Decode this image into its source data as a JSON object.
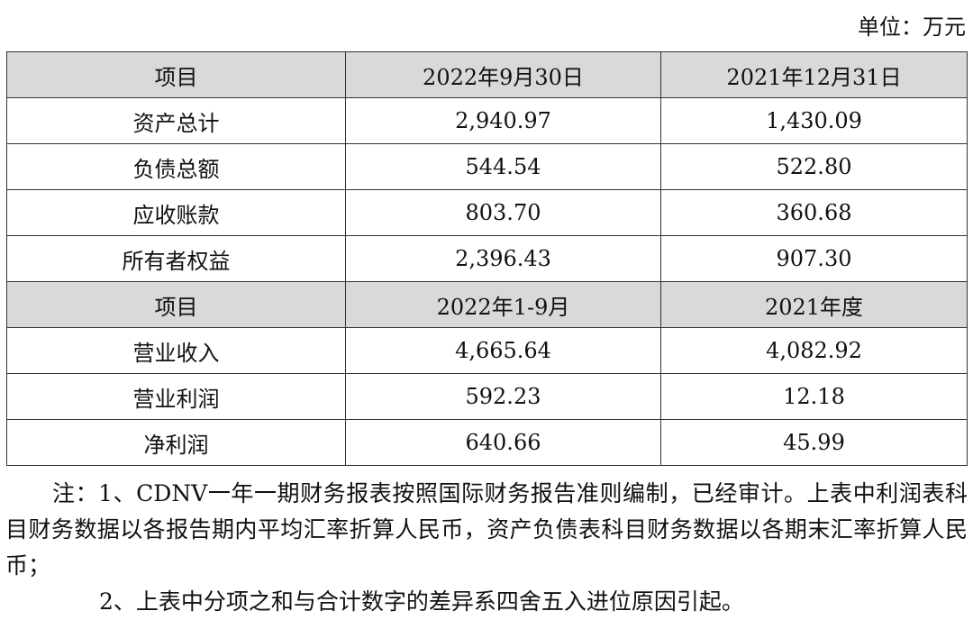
{
  "unit": "单位：万元",
  "table": {
    "sections": [
      {
        "header": [
          "项目",
          "2022年9月30日",
          "2021年12月31日"
        ],
        "rows": [
          [
            "资产总计",
            "2,940.97",
            "1,430.09"
          ],
          [
            "负债总额",
            "544.54",
            "522.80"
          ],
          [
            "应收账款",
            "803.70",
            "360.68"
          ],
          [
            "所有者权益",
            "2,396.43",
            "907.30"
          ]
        ]
      },
      {
        "header": [
          "项目",
          "2022年1-9月",
          "2021年度"
        ],
        "rows": [
          [
            "营业收入",
            "4,665.64",
            "4,082.92"
          ],
          [
            "营业利润",
            "592.23",
            "12.18"
          ],
          [
            "净利润",
            "640.66",
            "45.99"
          ]
        ]
      }
    ]
  },
  "notes": [
    "注：1、CDNV一年一期财务报表按照国际财务报告准则编制，已经审计。上表中利润表科目财务数据以各报告期内平均汇率折算人民币，资产负债表科目财务数据以各期末汇率折算人民币；",
    "2、上表中分项之和与合计数字的差异系四舍五入进位原因引起。"
  ]
}
